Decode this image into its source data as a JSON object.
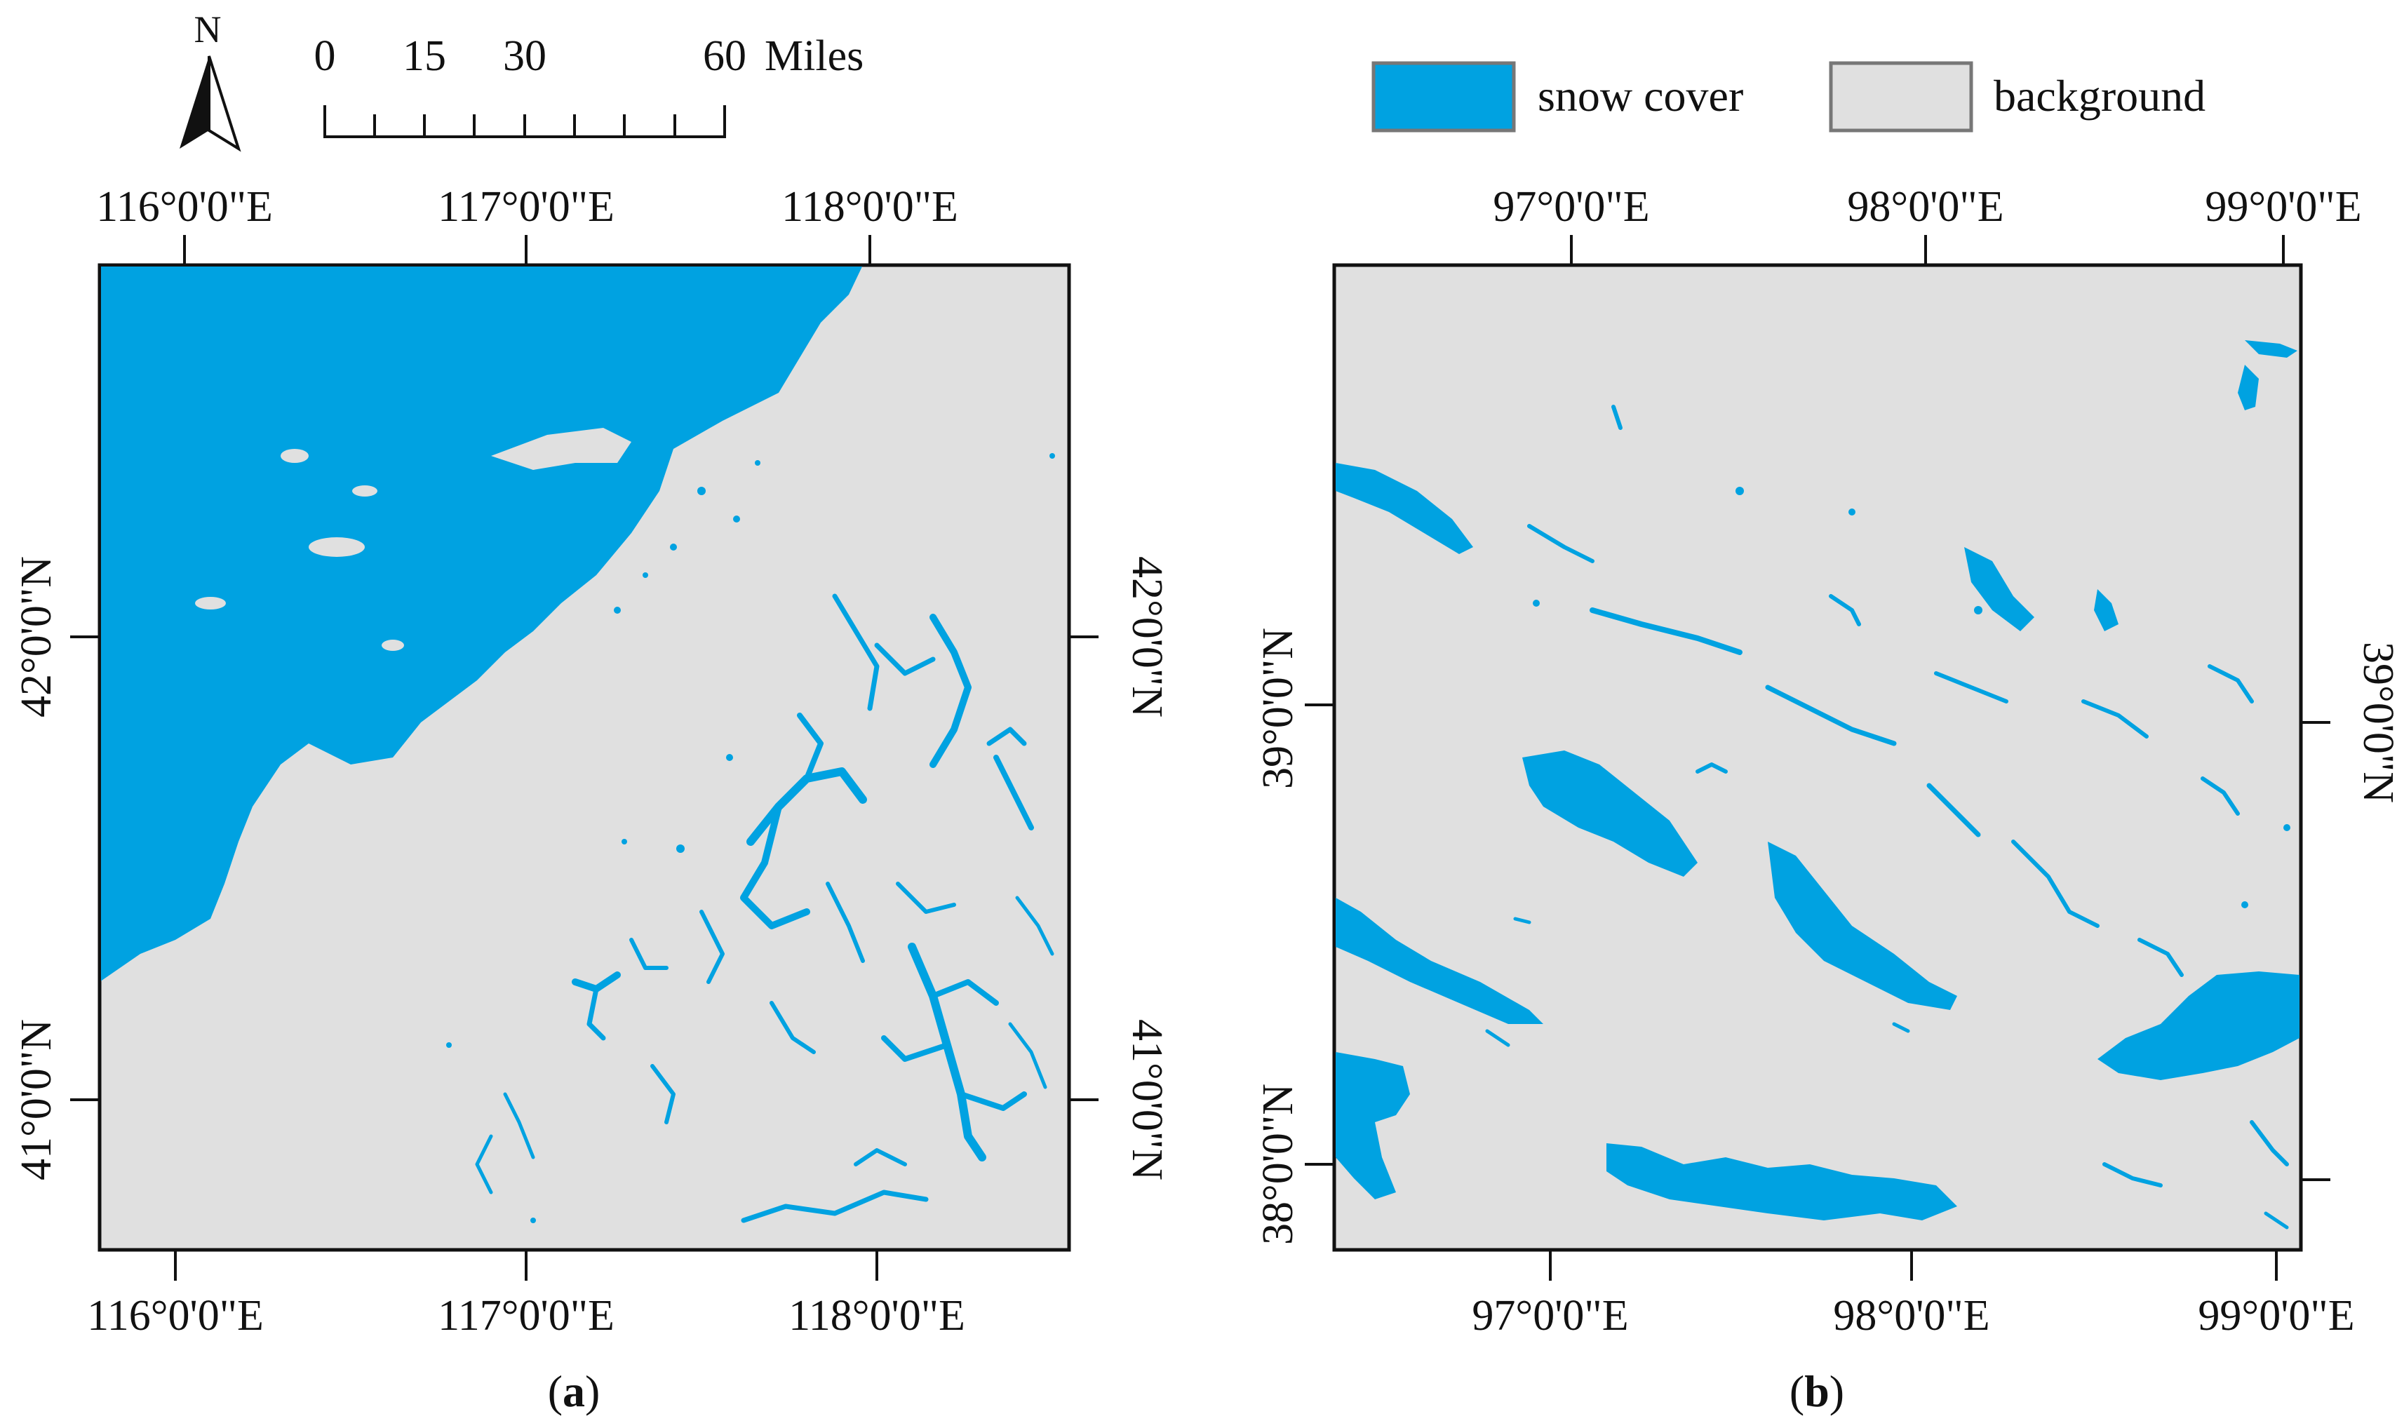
{
  "scale_bar": {
    "ticks": [
      "0",
      "15",
      "30",
      "60"
    ],
    "unit": "Miles"
  },
  "north_arrow": {
    "label": "N",
    "icon": "north-arrow-icon"
  },
  "legend": {
    "items": [
      {
        "label": "snow cover",
        "color": "#00a2e1"
      },
      {
        "label": "background",
        "color": "#e0e0e0"
      }
    ]
  },
  "panel_a": {
    "caption_letter": "a",
    "lon_labels": [
      "116°0'0\"E",
      "117°0'0\"E",
      "118°0'0\"E"
    ],
    "lat_labels": [
      "42°0'0\"N",
      "41°0'0\"N"
    ]
  },
  "panel_b": {
    "caption_letter": "b",
    "lon_labels": [
      "97°0'0\"E",
      "98°0'0\"E",
      "99°0'0\"E"
    ],
    "lat_labels": [
      "39°0'0\"N",
      "38°0'0\"N"
    ]
  },
  "colors": {
    "snow": "#00a2e1",
    "background": "#e0e0e0"
  }
}
